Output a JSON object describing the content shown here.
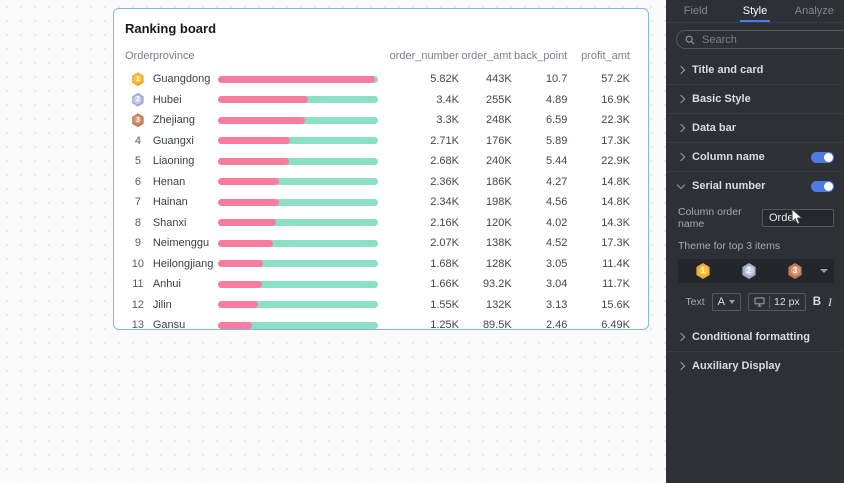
{
  "canvas": {
    "card": {
      "title": "Ranking board",
      "headers": {
        "order": "Order",
        "province": "province",
        "order_number": "order_number",
        "order_amt": "order_amt",
        "back_point": "back_point",
        "profit_amt": "profit_amt"
      },
      "rows": [
        {
          "order": "1",
          "medal": "gold",
          "province": "Guangdong",
          "bar_pct": 98,
          "order_number": "5.82K",
          "order_amt": "443K",
          "back_point": "10.7",
          "profit_amt": "57.2K"
        },
        {
          "order": "2",
          "medal": "silver",
          "province": "Hubei",
          "bar_pct": 56,
          "order_number": "3.4K",
          "order_amt": "255K",
          "back_point": "4.89",
          "profit_amt": "16.9K"
        },
        {
          "order": "3",
          "medal": "bronze",
          "province": "Zhejiang",
          "bar_pct": 54,
          "order_number": "3.3K",
          "order_amt": "248K",
          "back_point": "6.59",
          "profit_amt": "22.3K"
        },
        {
          "order": "4",
          "medal": null,
          "province": "Guangxi",
          "bar_pct": 45,
          "order_number": "2.71K",
          "order_amt": "176K",
          "back_point": "5.89",
          "profit_amt": "17.3K"
        },
        {
          "order": "5",
          "medal": null,
          "province": "Liaoning",
          "bar_pct": 44,
          "order_number": "2.68K",
          "order_amt": "240K",
          "back_point": "5.44",
          "profit_amt": "22.9K"
        },
        {
          "order": "6",
          "medal": null,
          "province": "Henan",
          "bar_pct": 38,
          "order_number": "2.36K",
          "order_amt": "186K",
          "back_point": "4.27",
          "profit_amt": "14.8K"
        },
        {
          "order": "7",
          "medal": null,
          "province": "Hainan",
          "bar_pct": 38,
          "order_number": "2.34K",
          "order_amt": "198K",
          "back_point": "4.56",
          "profit_amt": "14.8K"
        },
        {
          "order": "8",
          "medal": null,
          "province": "Shanxi",
          "bar_pct": 36,
          "order_number": "2.16K",
          "order_amt": "120K",
          "back_point": "4.02",
          "profit_amt": "14.3K"
        },
        {
          "order": "9",
          "medal": null,
          "province": "Neimenggu",
          "bar_pct": 34,
          "order_number": "2.07K",
          "order_amt": "138K",
          "back_point": "4.52",
          "profit_amt": "17.3K"
        },
        {
          "order": "10",
          "medal": null,
          "province": "Heilongjiang",
          "bar_pct": 28,
          "order_number": "1.68K",
          "order_amt": "128K",
          "back_point": "3.05",
          "profit_amt": "11.4K"
        },
        {
          "order": "11",
          "medal": null,
          "province": "Anhui",
          "bar_pct": 27,
          "order_number": "1.66K",
          "order_amt": "93.2K",
          "back_point": "3.04",
          "profit_amt": "11.7K"
        },
        {
          "order": "12",
          "medal": null,
          "province": "Jilin",
          "bar_pct": 25,
          "order_number": "1.55K",
          "order_amt": "132K",
          "back_point": "3.13",
          "profit_amt": "15.6K"
        },
        {
          "order": "13",
          "medal": null,
          "province": "Gansu",
          "bar_pct": 21,
          "order_number": "1.25K",
          "order_amt": "89.5K",
          "back_point": "2.46",
          "profit_amt": "6.49K"
        }
      ]
    }
  },
  "panel": {
    "tabs": [
      {
        "label": "Field",
        "active": false
      },
      {
        "label": "Style",
        "active": true
      },
      {
        "label": "Analyze",
        "active": false
      }
    ],
    "search": {
      "placeholder": "Search"
    },
    "sections_top": [
      {
        "label": "Title and card",
        "toggle": false,
        "expanded": false
      },
      {
        "label": "Basic Style",
        "toggle": false,
        "expanded": false
      },
      {
        "label": "Data bar",
        "toggle": false,
        "expanded": false
      },
      {
        "label": "Column name",
        "toggle": true,
        "expanded": false
      },
      {
        "label": "Serial number",
        "toggle": true,
        "expanded": true
      }
    ],
    "sections_bottom": [
      {
        "label": "Conditional formatting",
        "toggle": false,
        "expanded": false
      },
      {
        "label": "Auxiliary Display",
        "toggle": false,
        "expanded": false
      }
    ],
    "serial_number": {
      "column_order_name_label": "Column order name",
      "column_order_name_value": "Order",
      "theme_label": "Theme for top 3 items",
      "medals": [
        "1",
        "2",
        "3"
      ],
      "text_label": "Text",
      "font_color_label": "A",
      "font_size": "12 px",
      "bold_label": "B",
      "italic_label": "I"
    }
  },
  "colors": {
    "accent_blue": "#4c7ce0",
    "bar_pink": "#f97c9e",
    "bar_green": "#8adfc5",
    "medal_gold": "#f0a838",
    "medal_silver": "#9fafcd",
    "medal_bronze": "#bd7d58",
    "card_border": "#7fb4ef",
    "panel_bg": "#2e3037"
  }
}
